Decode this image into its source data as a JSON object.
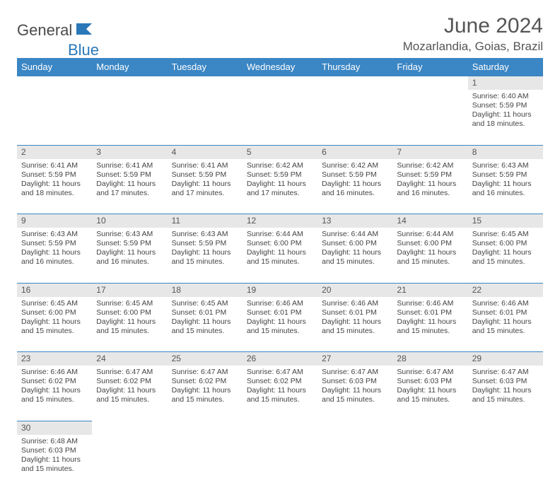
{
  "brand": {
    "part1": "General",
    "part2": "Blue"
  },
  "title": "June 2024",
  "location": "Mozarlandia, Goias, Brazil",
  "colors": {
    "header_bg": "#3b86c4",
    "header_text": "#ffffff",
    "daynum_bg": "#e7e7e7",
    "border": "#3b86c4",
    "body_text": "#444444",
    "title_text": "#555555"
  },
  "columns": [
    "Sunday",
    "Monday",
    "Tuesday",
    "Wednesday",
    "Thursday",
    "Friday",
    "Saturday"
  ],
  "weeks": [
    [
      null,
      null,
      null,
      null,
      null,
      null,
      {
        "n": "1",
        "sr": "Sunrise: 6:40 AM",
        "ss": "Sunset: 5:59 PM",
        "d1": "Daylight: 11 hours",
        "d2": "and 18 minutes."
      }
    ],
    [
      {
        "n": "2",
        "sr": "Sunrise: 6:41 AM",
        "ss": "Sunset: 5:59 PM",
        "d1": "Daylight: 11 hours",
        "d2": "and 18 minutes."
      },
      {
        "n": "3",
        "sr": "Sunrise: 6:41 AM",
        "ss": "Sunset: 5:59 PM",
        "d1": "Daylight: 11 hours",
        "d2": "and 17 minutes."
      },
      {
        "n": "4",
        "sr": "Sunrise: 6:41 AM",
        "ss": "Sunset: 5:59 PM",
        "d1": "Daylight: 11 hours",
        "d2": "and 17 minutes."
      },
      {
        "n": "5",
        "sr": "Sunrise: 6:42 AM",
        "ss": "Sunset: 5:59 PM",
        "d1": "Daylight: 11 hours",
        "d2": "and 17 minutes."
      },
      {
        "n": "6",
        "sr": "Sunrise: 6:42 AM",
        "ss": "Sunset: 5:59 PM",
        "d1": "Daylight: 11 hours",
        "d2": "and 16 minutes."
      },
      {
        "n": "7",
        "sr": "Sunrise: 6:42 AM",
        "ss": "Sunset: 5:59 PM",
        "d1": "Daylight: 11 hours",
        "d2": "and 16 minutes."
      },
      {
        "n": "8",
        "sr": "Sunrise: 6:43 AM",
        "ss": "Sunset: 5:59 PM",
        "d1": "Daylight: 11 hours",
        "d2": "and 16 minutes."
      }
    ],
    [
      {
        "n": "9",
        "sr": "Sunrise: 6:43 AM",
        "ss": "Sunset: 5:59 PM",
        "d1": "Daylight: 11 hours",
        "d2": "and 16 minutes."
      },
      {
        "n": "10",
        "sr": "Sunrise: 6:43 AM",
        "ss": "Sunset: 5:59 PM",
        "d1": "Daylight: 11 hours",
        "d2": "and 16 minutes."
      },
      {
        "n": "11",
        "sr": "Sunrise: 6:43 AM",
        "ss": "Sunset: 5:59 PM",
        "d1": "Daylight: 11 hours",
        "d2": "and 15 minutes."
      },
      {
        "n": "12",
        "sr": "Sunrise: 6:44 AM",
        "ss": "Sunset: 6:00 PM",
        "d1": "Daylight: 11 hours",
        "d2": "and 15 minutes."
      },
      {
        "n": "13",
        "sr": "Sunrise: 6:44 AM",
        "ss": "Sunset: 6:00 PM",
        "d1": "Daylight: 11 hours",
        "d2": "and 15 minutes."
      },
      {
        "n": "14",
        "sr": "Sunrise: 6:44 AM",
        "ss": "Sunset: 6:00 PM",
        "d1": "Daylight: 11 hours",
        "d2": "and 15 minutes."
      },
      {
        "n": "15",
        "sr": "Sunrise: 6:45 AM",
        "ss": "Sunset: 6:00 PM",
        "d1": "Daylight: 11 hours",
        "d2": "and 15 minutes."
      }
    ],
    [
      {
        "n": "16",
        "sr": "Sunrise: 6:45 AM",
        "ss": "Sunset: 6:00 PM",
        "d1": "Daylight: 11 hours",
        "d2": "and 15 minutes."
      },
      {
        "n": "17",
        "sr": "Sunrise: 6:45 AM",
        "ss": "Sunset: 6:00 PM",
        "d1": "Daylight: 11 hours",
        "d2": "and 15 minutes."
      },
      {
        "n": "18",
        "sr": "Sunrise: 6:45 AM",
        "ss": "Sunset: 6:01 PM",
        "d1": "Daylight: 11 hours",
        "d2": "and 15 minutes."
      },
      {
        "n": "19",
        "sr": "Sunrise: 6:46 AM",
        "ss": "Sunset: 6:01 PM",
        "d1": "Daylight: 11 hours",
        "d2": "and 15 minutes."
      },
      {
        "n": "20",
        "sr": "Sunrise: 6:46 AM",
        "ss": "Sunset: 6:01 PM",
        "d1": "Daylight: 11 hours",
        "d2": "and 15 minutes."
      },
      {
        "n": "21",
        "sr": "Sunrise: 6:46 AM",
        "ss": "Sunset: 6:01 PM",
        "d1": "Daylight: 11 hours",
        "d2": "and 15 minutes."
      },
      {
        "n": "22",
        "sr": "Sunrise: 6:46 AM",
        "ss": "Sunset: 6:01 PM",
        "d1": "Daylight: 11 hours",
        "d2": "and 15 minutes."
      }
    ],
    [
      {
        "n": "23",
        "sr": "Sunrise: 6:46 AM",
        "ss": "Sunset: 6:02 PM",
        "d1": "Daylight: 11 hours",
        "d2": "and 15 minutes."
      },
      {
        "n": "24",
        "sr": "Sunrise: 6:47 AM",
        "ss": "Sunset: 6:02 PM",
        "d1": "Daylight: 11 hours",
        "d2": "and 15 minutes."
      },
      {
        "n": "25",
        "sr": "Sunrise: 6:47 AM",
        "ss": "Sunset: 6:02 PM",
        "d1": "Daylight: 11 hours",
        "d2": "and 15 minutes."
      },
      {
        "n": "26",
        "sr": "Sunrise: 6:47 AM",
        "ss": "Sunset: 6:02 PM",
        "d1": "Daylight: 11 hours",
        "d2": "and 15 minutes."
      },
      {
        "n": "27",
        "sr": "Sunrise: 6:47 AM",
        "ss": "Sunset: 6:03 PM",
        "d1": "Daylight: 11 hours",
        "d2": "and 15 minutes."
      },
      {
        "n": "28",
        "sr": "Sunrise: 6:47 AM",
        "ss": "Sunset: 6:03 PM",
        "d1": "Daylight: 11 hours",
        "d2": "and 15 minutes."
      },
      {
        "n": "29",
        "sr": "Sunrise: 6:47 AM",
        "ss": "Sunset: 6:03 PM",
        "d1": "Daylight: 11 hours",
        "d2": "and 15 minutes."
      }
    ],
    [
      {
        "n": "30",
        "sr": "Sunrise: 6:48 AM",
        "ss": "Sunset: 6:03 PM",
        "d1": "Daylight: 11 hours",
        "d2": "and 15 minutes."
      },
      null,
      null,
      null,
      null,
      null,
      null
    ]
  ]
}
